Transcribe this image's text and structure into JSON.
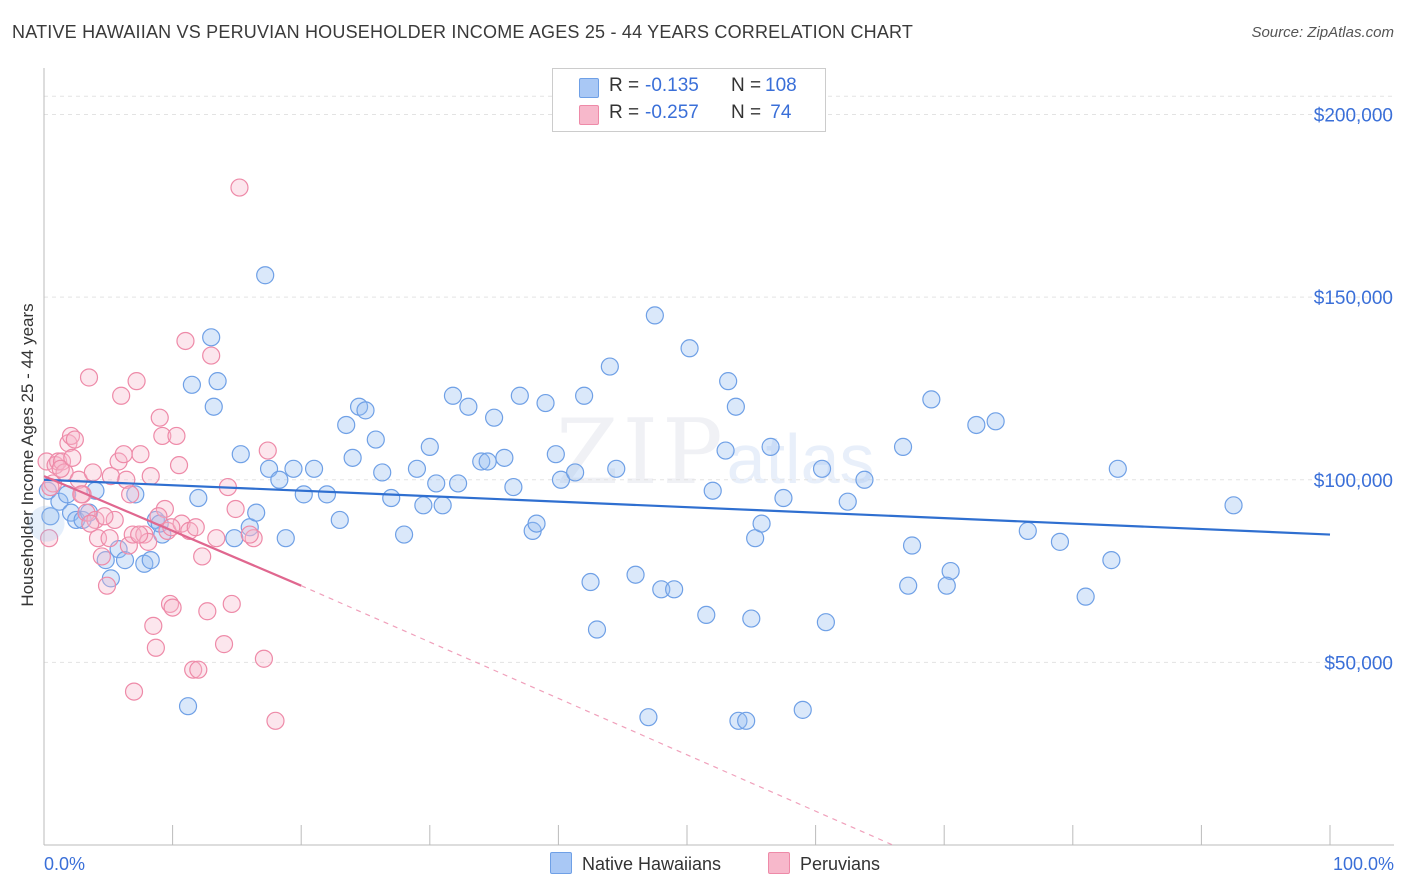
{
  "title": "NATIVE HAWAIIAN VS PERUVIAN HOUSEHOLDER INCOME AGES 25 - 44 YEARS CORRELATION CHART",
  "source": "Source: ZipAtlas.com",
  "watermark": {
    "zip": "ZIP",
    "atlas": "atlas"
  },
  "legend": {
    "rows": [
      {
        "r_label": "R =",
        "r_value": "-0.135",
        "n_label": "N =",
        "n_value": "108",
        "color": "#a9c8f5"
      },
      {
        "r_label": "R =",
        "r_value": "-0.257",
        "n_label": "N =",
        "n_value": " 74",
        "color": "#f7b8cb"
      }
    ]
  },
  "bottom_legend": [
    {
      "label": "Native Hawaiians",
      "color": "#a9c8f5"
    },
    {
      "label": "Peruvians",
      "color": "#f7b8cb"
    }
  ],
  "chart_data": {
    "type": "scatter",
    "title": "NATIVE HAWAIIAN VS PERUVIAN HOUSEHOLDER INCOME AGES 25 - 44 YEARS CORRELATION CHART",
    "xlabel": "",
    "ylabel": "Householder Income Ages 25 - 44 years",
    "xlim": [
      0,
      100
    ],
    "ylim": [
      0,
      210000
    ],
    "x_tick_labels": [
      "0.0%",
      "100.0%"
    ],
    "y_ticks": [
      50000,
      100000,
      150000,
      200000
    ],
    "y_tick_labels": [
      "$50,000",
      "$100,000",
      "$150,000",
      "$200,000"
    ],
    "series": [
      {
        "name": "Native Hawaiians",
        "color": "#6fa0e6",
        "fill": "rgba(150,190,240,0.35)",
        "r": -0.135,
        "n": 108,
        "trend": {
          "x": [
            0,
            100
          ],
          "y": [
            100000,
            85000
          ],
          "dashed_extension": false
        },
        "points": [
          [
            0.3,
            97000
          ],
          [
            0.5,
            90000
          ],
          [
            1.2,
            94000
          ],
          [
            1.8,
            96000
          ],
          [
            2.1,
            91000
          ],
          [
            2.5,
            89000
          ],
          [
            3.0,
            89000
          ],
          [
            3.5,
            91000
          ],
          [
            4.0,
            97000
          ],
          [
            4.8,
            78000
          ],
          [
            5.2,
            73000
          ],
          [
            5.8,
            81000
          ],
          [
            6.3,
            78000
          ],
          [
            7.1,
            96000
          ],
          [
            7.8,
            77000
          ],
          [
            8.3,
            78000
          ],
          [
            8.7,
            89000
          ],
          [
            9.2,
            85000
          ],
          [
            9.0,
            88000
          ],
          [
            11.2,
            38000
          ],
          [
            11.5,
            126000
          ],
          [
            12.0,
            95000
          ],
          [
            13.0,
            139000
          ],
          [
            13.2,
            120000
          ],
          [
            13.5,
            127000
          ],
          [
            14.8,
            84000
          ],
          [
            15.3,
            107000
          ],
          [
            16.0,
            87000
          ],
          [
            16.5,
            91000
          ],
          [
            17.2,
            156000
          ],
          [
            17.5,
            103000
          ],
          [
            18.3,
            100000
          ],
          [
            18.8,
            84000
          ],
          [
            19.4,
            103000
          ],
          [
            20.2,
            96000
          ],
          [
            21.0,
            103000
          ],
          [
            22.0,
            96000
          ],
          [
            23.0,
            89000
          ],
          [
            23.5,
            115000
          ],
          [
            24.5,
            120000
          ],
          [
            24.0,
            106000
          ],
          [
            25.0,
            119000
          ],
          [
            25.8,
            111000
          ],
          [
            26.3,
            102000
          ],
          [
            27.0,
            95000
          ],
          [
            28.0,
            85000
          ],
          [
            29.0,
            103000
          ],
          [
            29.5,
            93000
          ],
          [
            30.0,
            109000
          ],
          [
            31.0,
            93000
          ],
          [
            30.5,
            99000
          ],
          [
            31.8,
            123000
          ],
          [
            32.2,
            99000
          ],
          [
            33.0,
            120000
          ],
          [
            34.0,
            105000
          ],
          [
            34.5,
            105000
          ],
          [
            35.0,
            117000
          ],
          [
            35.8,
            106000
          ],
          [
            36.5,
            98000
          ],
          [
            37.0,
            123000
          ],
          [
            38.0,
            86000
          ],
          [
            38.3,
            88000
          ],
          [
            39.0,
            121000
          ],
          [
            39.8,
            107000
          ],
          [
            40.2,
            100000
          ],
          [
            41.3,
            102000
          ],
          [
            42.0,
            123000
          ],
          [
            42.5,
            72000
          ],
          [
            43.0,
            59000
          ],
          [
            44.0,
            131000
          ],
          [
            44.5,
            103000
          ],
          [
            46.0,
            74000
          ],
          [
            47.0,
            35000
          ],
          [
            47.5,
            145000
          ],
          [
            48.0,
            70000
          ],
          [
            49.0,
            70000
          ],
          [
            50.2,
            136000
          ],
          [
            51.5,
            63000
          ],
          [
            52.0,
            97000
          ],
          [
            53.0,
            108000
          ],
          [
            53.2,
            127000
          ],
          [
            53.8,
            120000
          ],
          [
            54.0,
            34000
          ],
          [
            54.6,
            34000
          ],
          [
            55.0,
            62000
          ],
          [
            55.3,
            84000
          ],
          [
            55.8,
            88000
          ],
          [
            56.5,
            109000
          ],
          [
            57.5,
            95000
          ],
          [
            59.0,
            37000
          ],
          [
            60.5,
            103000
          ],
          [
            60.8,
            61000
          ],
          [
            62.5,
            94000
          ],
          [
            63.8,
            100000
          ],
          [
            67.5,
            82000
          ],
          [
            66.8,
            109000
          ],
          [
            67.2,
            71000
          ],
          [
            69.0,
            122000
          ],
          [
            70.5,
            75000
          ],
          [
            70.2,
            71000
          ],
          [
            72.5,
            115000
          ],
          [
            74.0,
            116000
          ],
          [
            76.5,
            86000
          ],
          [
            79.0,
            83000
          ],
          [
            81.0,
            68000
          ],
          [
            83.0,
            78000
          ],
          [
            83.5,
            103000
          ],
          [
            92.5,
            93000
          ]
        ]
      },
      {
        "name": "Peruvians",
        "color": "#ee8aa8",
        "fill": "rgba(247,184,203,0.35)",
        "r": -0.257,
        "n": 74,
        "trend": {
          "x": [
            0,
            20
          ],
          "y": [
            101000,
            71000
          ],
          "dashed_to": [
            66,
            0
          ]
        },
        "points": [
          [
            0.2,
            105000
          ],
          [
            0.4,
            84000
          ],
          [
            0.7,
            99000
          ],
          [
            0.9,
            104000
          ],
          [
            1.1,
            105000
          ],
          [
            1.4,
            105000
          ],
          [
            1.6,
            102000
          ],
          [
            1.9,
            110000
          ],
          [
            2.1,
            112000
          ],
          [
            2.4,
            111000
          ],
          [
            2.7,
            100000
          ],
          [
            3.0,
            96000
          ],
          [
            3.3,
            91000
          ],
          [
            3.5,
            128000
          ],
          [
            3.8,
            102000
          ],
          [
            4.0,
            89000
          ],
          [
            4.2,
            84000
          ],
          [
            4.5,
            79000
          ],
          [
            4.9,
            71000
          ],
          [
            5.2,
            101000
          ],
          [
            5.5,
            89000
          ],
          [
            5.8,
            105000
          ],
          [
            6.0,
            123000
          ],
          [
            6.2,
            107000
          ],
          [
            6.4,
            100000
          ],
          [
            6.6,
            82000
          ],
          [
            6.9,
            85000
          ],
          [
            7.2,
            127000
          ],
          [
            7.5,
            107000
          ],
          [
            7.0,
            42000
          ],
          [
            7.8,
            85000
          ],
          [
            8.1,
            83000
          ],
          [
            8.3,
            101000
          ],
          [
            8.5,
            60000
          ],
          [
            8.7,
            54000
          ],
          [
            9.0,
            117000
          ],
          [
            9.2,
            112000
          ],
          [
            9.4,
            92000
          ],
          [
            9.6,
            86000
          ],
          [
            9.8,
            66000
          ],
          [
            10.0,
            65000
          ],
          [
            10.3,
            112000
          ],
          [
            10.5,
            104000
          ],
          [
            10.7,
            88000
          ],
          [
            11.0,
            138000
          ],
          [
            11.3,
            86000
          ],
          [
            11.6,
            48000
          ],
          [
            12.0,
            48000
          ],
          [
            12.3,
            79000
          ],
          [
            12.7,
            64000
          ],
          [
            13.0,
            134000
          ],
          [
            14.0,
            55000
          ],
          [
            14.3,
            98000
          ],
          [
            14.6,
            66000
          ],
          [
            14.9,
            92000
          ],
          [
            15.2,
            180000
          ],
          [
            16.3,
            84000
          ],
          [
            17.1,
            51000
          ],
          [
            17.4,
            108000
          ],
          [
            18.0,
            34000
          ],
          [
            2.9,
            96000
          ],
          [
            1.3,
            103000
          ],
          [
            0.5,
            98000
          ],
          [
            5.1,
            84000
          ],
          [
            6.7,
            96000
          ],
          [
            3.6,
            88000
          ],
          [
            2.2,
            106000
          ],
          [
            4.7,
            90000
          ],
          [
            7.4,
            85000
          ],
          [
            8.9,
            90000
          ],
          [
            9.9,
            87000
          ],
          [
            11.8,
            87000
          ],
          [
            13.4,
            84000
          ],
          [
            16.0,
            85000
          ]
        ]
      }
    ]
  }
}
